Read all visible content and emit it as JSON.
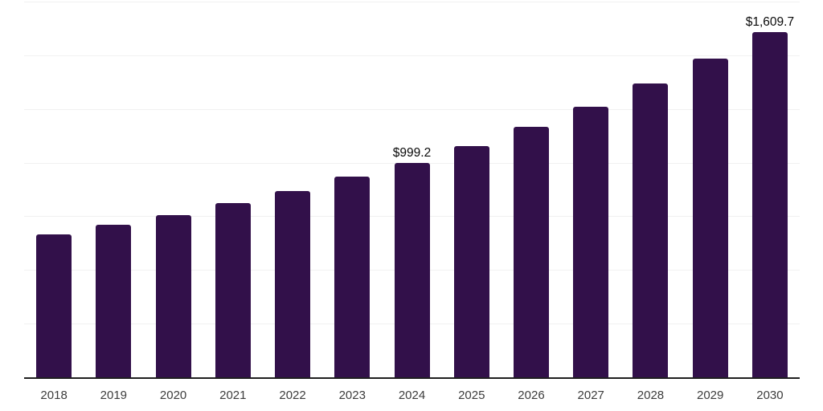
{
  "chart_data": {
    "type": "bar",
    "title": "",
    "xlabel": "",
    "ylabel": "",
    "categories": [
      "2018",
      "2019",
      "2020",
      "2021",
      "2022",
      "2023",
      "2024",
      "2025",
      "2026",
      "2027",
      "2028",
      "2029",
      "2030"
    ],
    "values": [
      665.6,
      710.4,
      755.3,
      811.4,
      867.5,
      934.8,
      999.2,
      1076.9,
      1166.6,
      1260.1,
      1368.5,
      1484.5,
      1609.7
    ],
    "data_labels": {
      "2024": "$999.2",
      "2030": "$1,609.7"
    },
    "value_prefix": "$",
    "ylim": [
      0,
      1750
    ],
    "grid_interval": 250,
    "grid": "horizontal-only",
    "legend": "none",
    "y_tick_labels_shown": false,
    "colors": {
      "bar": "#32104a",
      "gridline": "#f1f1f1",
      "axis_line": "#1f1f1f",
      "tick_label": "#3c3c3c",
      "data_label": "#0a0a0a",
      "background": "#ffffff"
    }
  }
}
